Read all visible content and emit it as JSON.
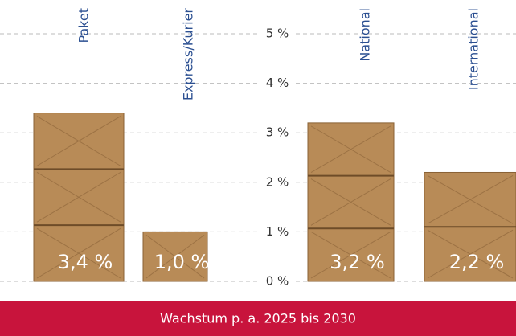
{
  "chart_data": {
    "type": "bar",
    "title": "Wachstum p. a. 2025 bis 2030",
    "categories": [
      "Paket",
      "Express/Kurier",
      "National",
      "International"
    ],
    "values": [
      3.4,
      1.0,
      3.2,
      2.2
    ],
    "value_labels": [
      "3,4 %",
      "1,0 %",
      "3,2 %",
      "2,2 %"
    ],
    "color": "#b88b57",
    "ylim": [
      0,
      5
    ],
    "yticks": [
      {
        "value": 0,
        "label": "0 %"
      },
      {
        "value": 1,
        "label": "1 %"
      },
      {
        "value": 2,
        "label": "2 %"
      },
      {
        "value": 3,
        "label": "3 %"
      },
      {
        "value": 4,
        "label": "4 %"
      },
      {
        "value": 5,
        "label": "5 %"
      }
    ],
    "grid": true
  }
}
